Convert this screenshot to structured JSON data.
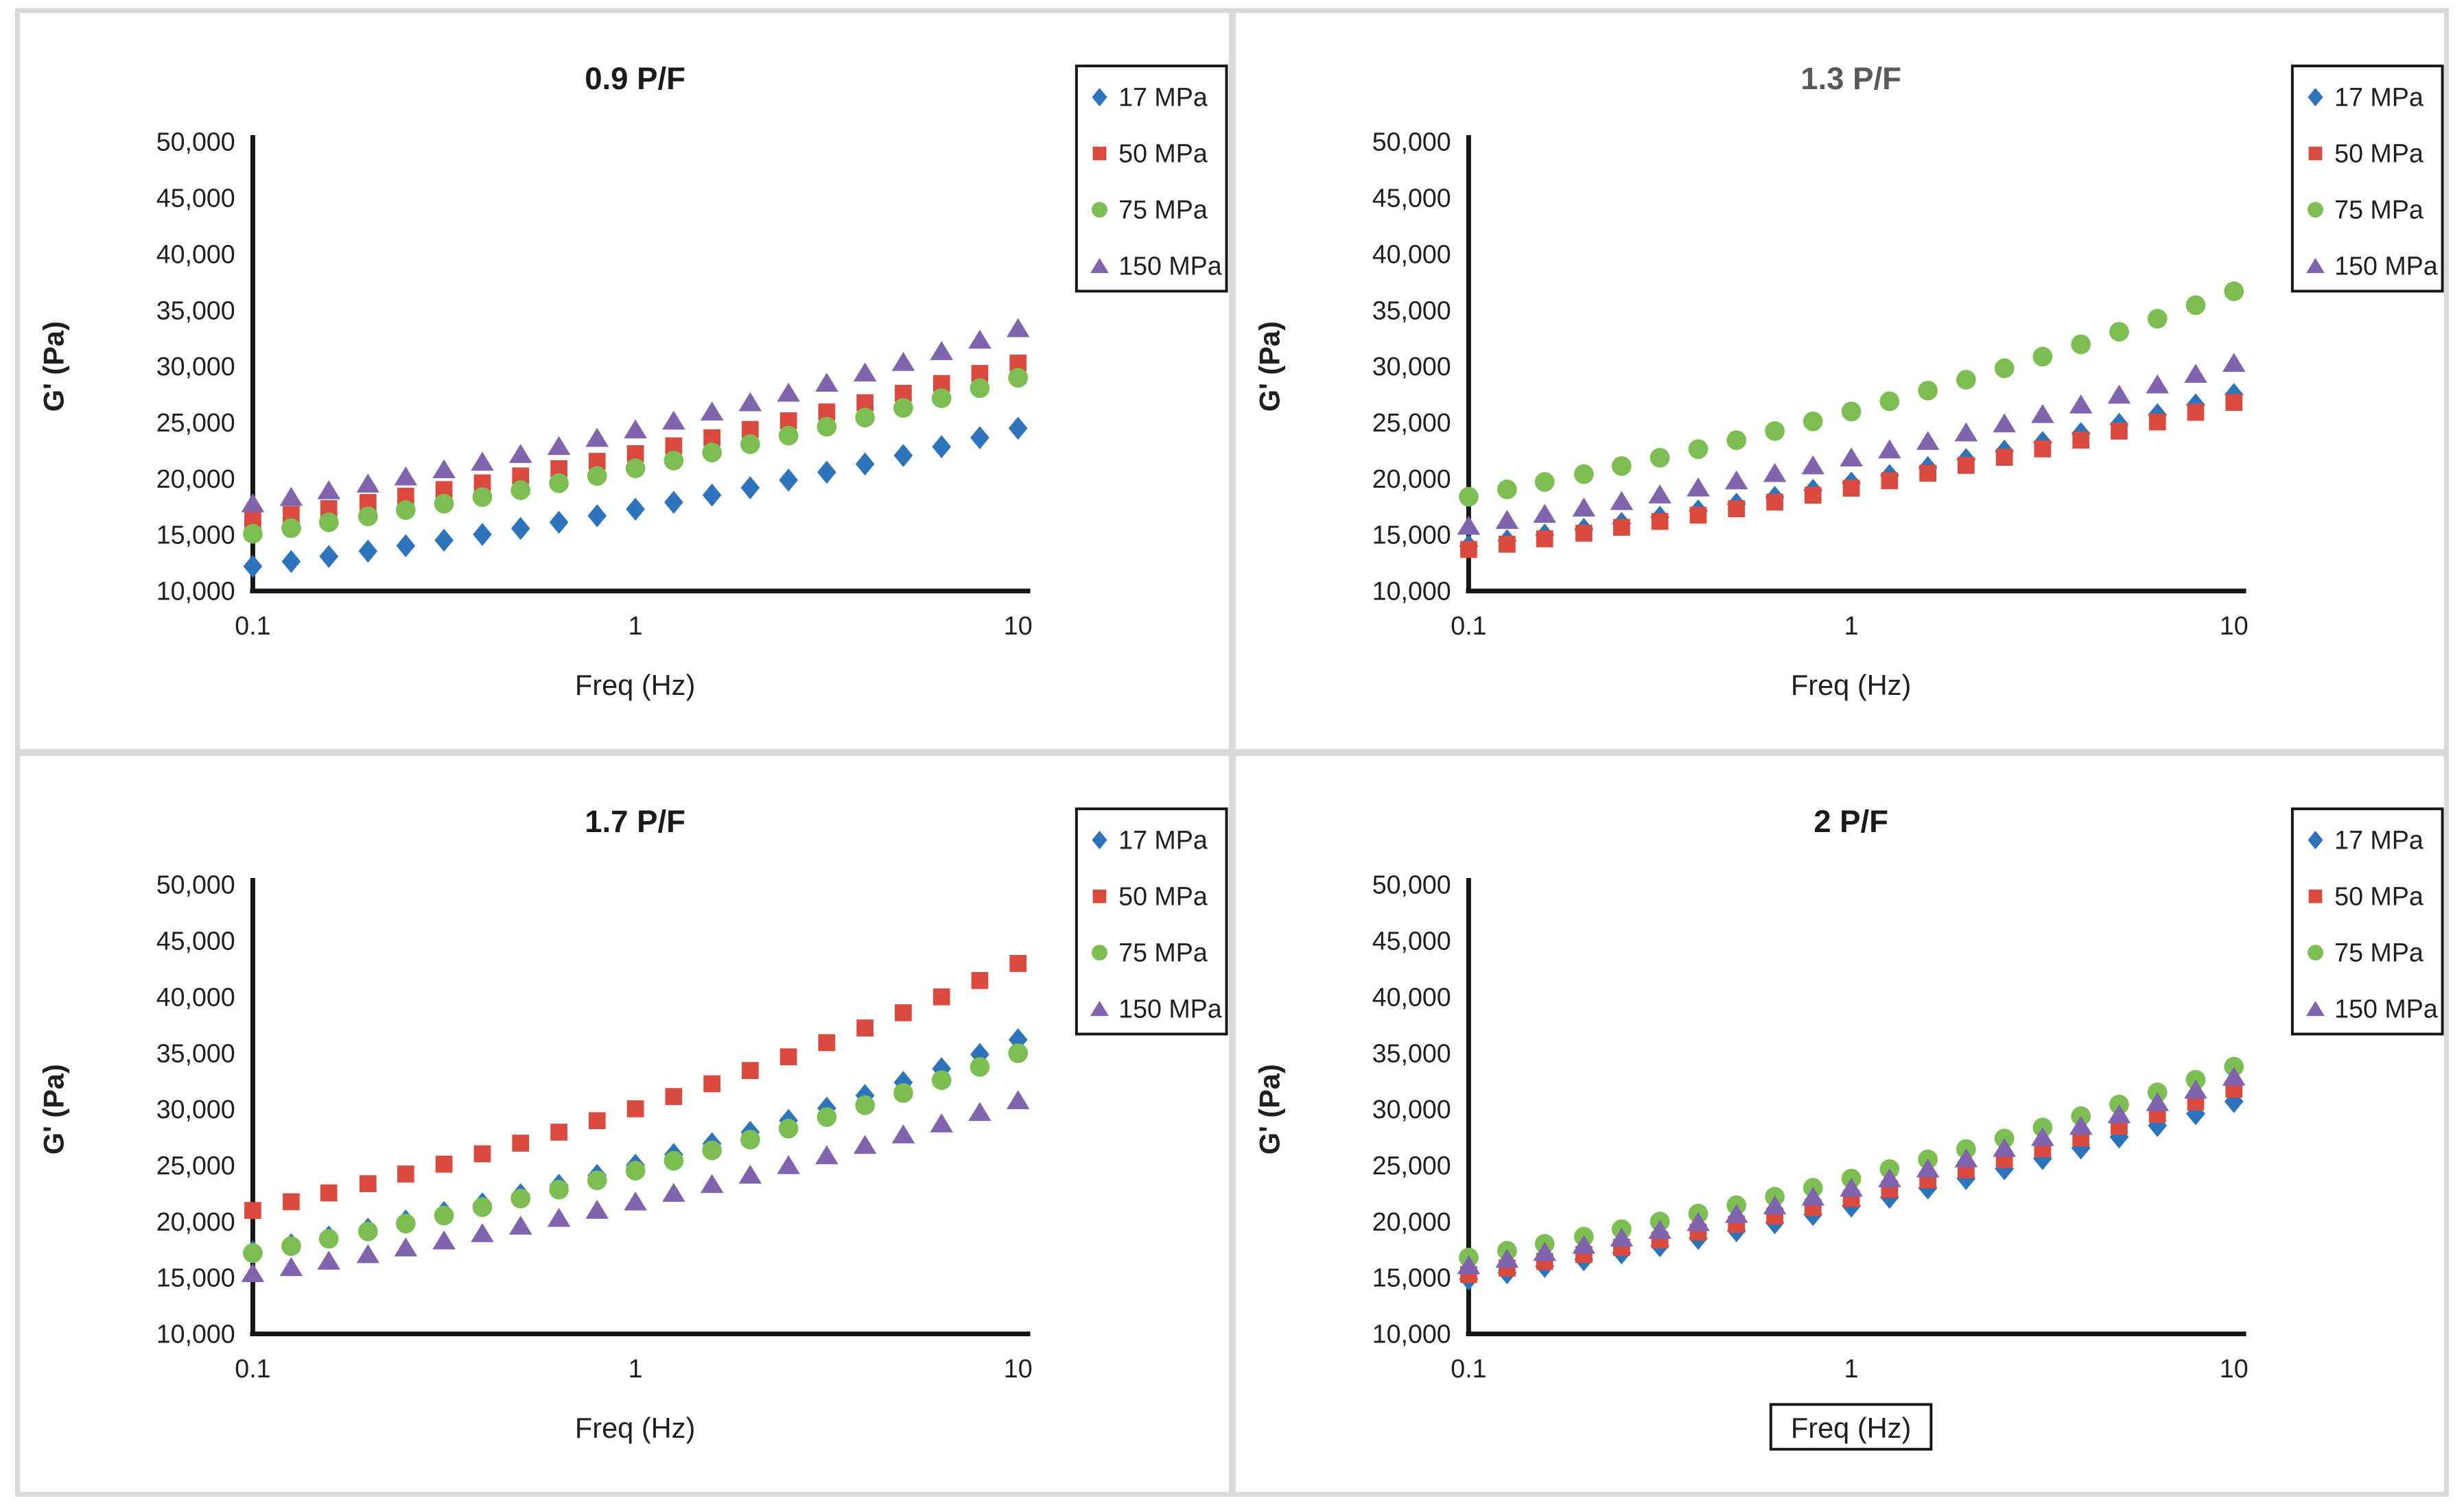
{
  "figure_title": "",
  "axes": {
    "ylabel": "G' (Pa)",
    "xlabel": "Freq (Hz)",
    "ymin": 10000,
    "ymax": 50000,
    "xscale": "log",
    "xlim": [
      0.1,
      10
    ],
    "gridlines": false,
    "yticks": [
      {
        "label": "50,000",
        "value": 50000
      },
      {
        "label": "45,000",
        "value": 45000
      },
      {
        "label": "40,000",
        "value": 40000
      },
      {
        "label": "35,000",
        "value": 35000
      },
      {
        "label": "30,000",
        "value": 30000
      },
      {
        "label": "25,000",
        "value": 25000
      },
      {
        "label": "20,000",
        "value": 20000
      },
      {
        "label": "15,000",
        "value": 15000
      },
      {
        "label": "10,000",
        "value": 10000
      }
    ],
    "xticks": [
      {
        "label": "0.1",
        "value": 0.1
      },
      {
        "label": "1",
        "value": 1
      },
      {
        "label": "10",
        "value": 10
      }
    ]
  },
  "legend": {
    "position": "top-right",
    "border_color": "#161616",
    "labels": [
      "17 MPa",
      "50 MPa",
      "75 MPa",
      "150 MPa"
    ]
  },
  "colors": {
    "blue": "#2E74BC",
    "red": "#DB4A3F",
    "green": "#7CBE51",
    "purple": "#8164AE"
  },
  "chart_data": [
    {
      "type": "scatter",
      "title": "0.9 P/F",
      "title_color": "#1a1a1a",
      "xlabel_boxed": false,
      "x": [
        0.1,
        0.126,
        0.158,
        0.2,
        0.251,
        0.316,
        0.398,
        0.501,
        0.631,
        0.794,
        1,
        1.259,
        1.585,
        1.995,
        2.512,
        3.162,
        3.981,
        5.012,
        6.31,
        7.943,
        10
      ],
      "series": [
        {
          "name": "17 MPa",
          "marker": "diamond",
          "color": "#2E74BC",
          "values": [
            12200,
            12630,
            13080,
            13550,
            14030,
            14520,
            15040,
            15570,
            16120,
            16700,
            17290,
            17900,
            18540,
            19200,
            19880,
            20580,
            21310,
            22070,
            22850,
            23660,
            24500
          ]
        },
        {
          "name": "50 MPa",
          "marker": "square",
          "color": "#DB4A3F",
          "values": [
            16300,
            16810,
            17340,
            17890,
            18450,
            19030,
            19630,
            20250,
            20890,
            21550,
            22230,
            22930,
            23650,
            24390,
            25160,
            25950,
            26770,
            27610,
            28480,
            29380,
            30300
          ]
        },
        {
          "name": "75 MPa",
          "marker": "circle",
          "color": "#7CBE51",
          "values": [
            15100,
            15600,
            16120,
            16650,
            17210,
            17780,
            18370,
            18980,
            19600,
            20250,
            20930,
            21620,
            22340,
            23080,
            23840,
            24640,
            25450,
            26300,
            27170,
            28070,
            29000
          ]
        },
        {
          "name": "150 MPa",
          "marker": "triangle",
          "color": "#8164AE",
          "values": [
            17800,
            18370,
            18960,
            19560,
            20190,
            20830,
            21500,
            22190,
            22900,
            23630,
            24380,
            25160,
            25970,
            26800,
            27650,
            28540,
            29450,
            30390,
            31360,
            32370,
            33400
          ]
        }
      ]
    },
    {
      "type": "scatter",
      "title": "1.3 P/F",
      "title_color": "#595959",
      "xlabel_boxed": false,
      "x": [
        0.1,
        0.126,
        0.158,
        0.2,
        0.251,
        0.316,
        0.398,
        0.501,
        0.631,
        0.794,
        1,
        1.259,
        1.585,
        1.995,
        2.512,
        3.162,
        3.981,
        5.012,
        6.31,
        7.943,
        10
      ],
      "series": [
        {
          "name": "17 MPa",
          "marker": "diamond",
          "color": "#2E74BC",
          "values": [
            14000,
            14480,
            14980,
            15490,
            16020,
            16570,
            17140,
            17730,
            18340,
            18970,
            19620,
            20290,
            20990,
            21710,
            22460,
            23230,
            24020,
            24850,
            25700,
            26580,
            27500
          ]
        },
        {
          "name": "50 MPa",
          "marker": "square",
          "color": "#DB4A3F",
          "values": [
            13700,
            14170,
            14650,
            15150,
            15670,
            16200,
            16760,
            17330,
            17920,
            18530,
            19160,
            19820,
            20490,
            21190,
            21910,
            22660,
            23440,
            24240,
            25060,
            25920,
            26800
          ]
        },
        {
          "name": "75 MPa",
          "marker": "circle",
          "color": "#7CBE51",
          "values": [
            18400,
            19050,
            19720,
            20410,
            21130,
            21870,
            22640,
            23430,
            24250,
            25110,
            25990,
            26900,
            27850,
            28820,
            29840,
            30880,
            31970,
            33090,
            34250,
            35460,
            36700
          ]
        },
        {
          "name": "150 MPa",
          "marker": "triangle",
          "color": "#8164AE",
          "values": [
            15800,
            16320,
            16860,
            17420,
            18000,
            18590,
            19210,
            19840,
            20500,
            21180,
            21880,
            22600,
            23350,
            24120,
            24920,
            25750,
            26600,
            27480,
            28390,
            29330,
            30300
          ]
        }
      ]
    },
    {
      "type": "scatter",
      "title": "1.7 P/F",
      "title_color": "#1a1a1a",
      "xlabel_boxed": false,
      "x": [
        0.1,
        0.126,
        0.158,
        0.2,
        0.251,
        0.316,
        0.398,
        0.501,
        0.631,
        0.794,
        1,
        1.259,
        1.585,
        1.995,
        2.512,
        3.162,
        3.981,
        5.012,
        6.31,
        7.943,
        10
      ],
      "series": [
        {
          "name": "17 MPa",
          "marker": "diamond",
          "color": "#2E74BC",
          "values": [
            17300,
            17950,
            18630,
            19330,
            20050,
            20810,
            21590,
            22400,
            23240,
            24120,
            25030,
            25970,
            26940,
            27960,
            29010,
            30100,
            31230,
            32400,
            33620,
            34890,
            36200
          ]
        },
        {
          "name": "50 MPa",
          "marker": "square",
          "color": "#DB4A3F",
          "values": [
            21000,
            21770,
            22560,
            23380,
            24240,
            25120,
            26040,
            26990,
            27970,
            28990,
            30050,
            31140,
            32280,
            33460,
            34680,
            35940,
            37250,
            38610,
            40020,
            41480,
            43000
          ]
        },
        {
          "name": "75 MPa",
          "marker": "circle",
          "color": "#7CBE51",
          "values": [
            17200,
            17820,
            18470,
            19130,
            19830,
            20540,
            21290,
            22060,
            22850,
            23680,
            24540,
            25420,
            26340,
            27300,
            28280,
            29310,
            30370,
            31460,
            32600,
            33780,
            35000
          ]
        },
        {
          "name": "150 MPa",
          "marker": "triangle",
          "color": "#8164AE",
          "values": [
            15400,
            15940,
            16510,
            17090,
            17690,
            18310,
            18960,
            19630,
            20320,
            21040,
            21780,
            22550,
            23340,
            24170,
            25020,
            25900,
            26820,
            27760,
            28740,
            29750,
            30800
          ]
        }
      ]
    },
    {
      "type": "scatter",
      "title": "2 P/F",
      "title_color": "#1a1a1a",
      "xlabel_boxed": true,
      "x": [
        0.1,
        0.126,
        0.158,
        0.2,
        0.251,
        0.316,
        0.398,
        0.501,
        0.631,
        0.794,
        1,
        1.259,
        1.585,
        1.995,
        2.512,
        3.162,
        3.981,
        5.012,
        6.31,
        7.943,
        10
      ],
      "series": [
        {
          "name": "17 MPa",
          "marker": "diamond",
          "color": "#2E74BC",
          "values": [
            14900,
            15450,
            16020,
            16610,
            17220,
            17850,
            18510,
            19190,
            19900,
            20630,
            21390,
            22170,
            22990,
            23840,
            24710,
            25620,
            26560,
            27540,
            28560,
            29610,
            30700
          ]
        },
        {
          "name": "50 MPa",
          "marker": "square",
          "color": "#DB4A3F",
          "values": [
            15300,
            15870,
            16460,
            17070,
            17710,
            18370,
            19060,
            19770,
            20500,
            21270,
            22060,
            22880,
            23730,
            24620,
            25530,
            26490,
            27470,
            28500,
            29560,
            30660,
            31800
          ]
        },
        {
          "name": "75 MPa",
          "marker": "circle",
          "color": "#7CBE51",
          "values": [
            16800,
            17400,
            18020,
            18660,
            19320,
            20010,
            20720,
            21460,
            22220,
            23010,
            23830,
            24680,
            25550,
            26460,
            27400,
            28380,
            29390,
            30430,
            31510,
            32640,
            33800
          ]
        },
        {
          "name": "150 MPa",
          "marker": "triangle",
          "color": "#8164AE",
          "values": [
            16100,
            16690,
            17290,
            17920,
            18570,
            19250,
            19950,
            20670,
            21430,
            22210,
            23010,
            23850,
            24720,
            25620,
            26550,
            27520,
            28520,
            29550,
            30630,
            31740,
            32900
          ]
        }
      ]
    }
  ]
}
